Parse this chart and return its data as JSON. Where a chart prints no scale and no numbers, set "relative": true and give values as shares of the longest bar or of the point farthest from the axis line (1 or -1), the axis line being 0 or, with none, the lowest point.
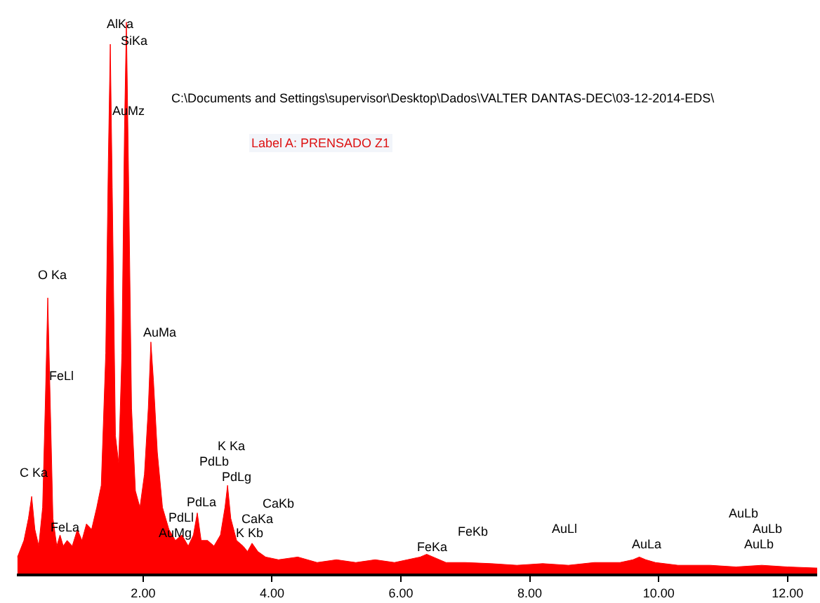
{
  "chart_data": {
    "type": "area",
    "relative": true,
    "title": "C:\\Documents and Settings\\supervisor\\Desktop\\Dados\\VALTER DANTAS-DEC\\03-12-2014-EDS\\",
    "subtitle": "Label A: PRENSADO Z1",
    "x": [
      0.05,
      0.15,
      0.22,
      0.27,
      0.32,
      0.38,
      0.44,
      0.48,
      0.52,
      0.56,
      0.6,
      0.66,
      0.71,
      0.76,
      0.82,
      0.9,
      0.98,
      1.05,
      1.12,
      1.2,
      1.28,
      1.35,
      1.42,
      1.46,
      1.49,
      1.52,
      1.57,
      1.62,
      1.67,
      1.71,
      1.74,
      1.77,
      1.82,
      1.88,
      1.95,
      2.02,
      2.08,
      2.12,
      2.16,
      2.22,
      2.3,
      2.4,
      2.5,
      2.6,
      2.7,
      2.78,
      2.84,
      2.9,
      3.0,
      3.1,
      3.2,
      3.27,
      3.31,
      3.36,
      3.45,
      3.55,
      3.62,
      3.69,
      3.78,
      3.9,
      4.1,
      4.4,
      4.7,
      5.0,
      5.3,
      5.6,
      5.9,
      6.1,
      6.3,
      6.4,
      6.5,
      6.7,
      7.0,
      7.4,
      7.8,
      8.2,
      8.6,
      9.0,
      9.4,
      9.6,
      9.7,
      9.8,
      9.95,
      10.3,
      10.8,
      11.2,
      11.6,
      12.0,
      12.46
    ],
    "series": [
      {
        "color": "#ff0000",
        "values": [
          0.03,
          0.06,
          0.1,
          0.14,
          0.08,
          0.05,
          0.12,
          0.3,
          0.5,
          0.3,
          0.1,
          0.05,
          0.07,
          0.05,
          0.06,
          0.05,
          0.08,
          0.06,
          0.09,
          0.08,
          0.12,
          0.16,
          0.4,
          0.75,
          0.96,
          0.7,
          0.25,
          0.2,
          0.4,
          0.8,
          1.0,
          0.75,
          0.3,
          0.15,
          0.12,
          0.18,
          0.3,
          0.42,
          0.35,
          0.22,
          0.12,
          0.08,
          0.06,
          0.07,
          0.05,
          0.07,
          0.11,
          0.06,
          0.06,
          0.05,
          0.07,
          0.12,
          0.16,
          0.1,
          0.06,
          0.05,
          0.04,
          0.055,
          0.04,
          0.03,
          0.025,
          0.03,
          0.02,
          0.025,
          0.02,
          0.025,
          0.02,
          0.025,
          0.03,
          0.035,
          0.03,
          0.02,
          0.02,
          0.018,
          0.015,
          0.018,
          0.015,
          0.02,
          0.02,
          0.025,
          0.03,
          0.025,
          0.02,
          0.015,
          0.015,
          0.012,
          0.015,
          0.012,
          0.01
        ]
      }
    ],
    "xlim": [
      0.04,
      12.46
    ],
    "xticks": [
      {
        "value": 2,
        "label": "2.00"
      },
      {
        "value": 4,
        "label": "4.00"
      },
      {
        "value": 6,
        "label": "6.00"
      },
      {
        "value": 8,
        "label": "8.00"
      },
      {
        "value": 10,
        "label": "10.00"
      },
      {
        "value": 12,
        "label": "12.00"
      }
    ],
    "annotations": [
      "AlKa",
      "SiKa",
      "AuMz",
      "O Ka",
      "FeLl",
      "AuMa",
      "C Ka",
      "FeLa",
      "K Ka",
      "PdLb",
      "PdLg",
      "PdLa",
      "PdLl",
      "AuMg",
      "CaKb",
      "CaKa",
      "K Kb",
      "FeKa",
      "FeKb",
      "AuLl",
      "AuLa",
      "AuLb",
      "AuLb",
      "AuLb"
    ]
  }
}
